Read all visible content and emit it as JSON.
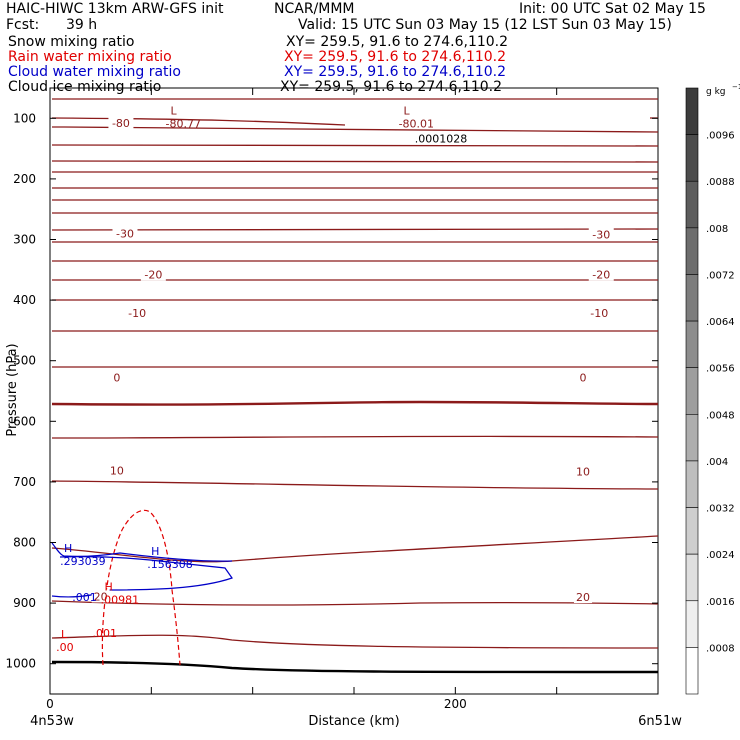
{
  "header": {
    "model": "HAIC-HIWC 13km ARW-GFS init",
    "org": "NCAR/MMM",
    "init": "Init: 00 UTC Sat 02 May 15",
    "fcst_label": "Fcst:",
    "fcst_value": "39 h",
    "valid": "Valid: 15 UTC Sun 03 May 15 (12 LST Sun 03 May 15)"
  },
  "fields": [
    {
      "name": "Snow mixing ratio",
      "xy": "XY= 259.5, 91.6 to 274.6,110.2",
      "color": "#000000"
    },
    {
      "name": "Rain water mixing ratio",
      "xy": "XY= 259.5, 91.6 to 274.6,110.2",
      "color": "#e00000"
    },
    {
      "name": "Cloud water mixing ratio",
      "xy": "XY= 259.5, 91.6 to 274.6,110.2",
      "color": "#0000c8"
    },
    {
      "name": "Cloud ice mixing ratio",
      "xy": "XY= 259.5, 91.6 to 274.6,110.2",
      "color": "#000000"
    }
  ],
  "chart_data": {
    "type": "cross-section",
    "xlabel": "Distance (km)",
    "ylabel": "Pressure (hPa)",
    "xlim": [
      0,
      300
    ],
    "ylim": [
      1050,
      50
    ],
    "x_ticks": [
      0,
      200
    ],
    "y_ticks": [
      100,
      200,
      300,
      400,
      500,
      600,
      700,
      800,
      900,
      1000
    ],
    "x_endpoint_labels": [
      "4n53w",
      "6n51w"
    ],
    "colorbar": {
      "unit": "g kg",
      "unit_exp": "−1",
      "labels": [
        ".0096",
        ".0088",
        ".008",
        ".0072",
        ".0064",
        ".0056",
        ".0048",
        ".004",
        ".0032",
        ".0024",
        ".0016",
        ".0008"
      ],
      "top_color": "#3c3c3c",
      "bottom_color": "#ffffff"
    },
    "temperature_contour_labels": [
      {
        "x": 35,
        "p": 108,
        "text": "-80"
      },
      {
        "x": 37,
        "p": 290,
        "text": "-30"
      },
      {
        "x": 272,
        "p": 292,
        "text": "-30"
      },
      {
        "x": 51,
        "p": 358,
        "text": "-20"
      },
      {
        "x": 272,
        "p": 358,
        "text": "-20"
      },
      {
        "x": 43,
        "p": 421,
        "text": "-10"
      },
      {
        "x": 271,
        "p": 421,
        "text": "-10"
      },
      {
        "x": 33,
        "p": 528,
        "text": "0"
      },
      {
        "x": 263,
        "p": 528,
        "text": "0"
      },
      {
        "x": 33,
        "p": 681,
        "text": "10"
      },
      {
        "x": 263,
        "p": 683,
        "text": "10"
      },
      {
        "x": 25,
        "p": 889,
        "text": "20"
      },
      {
        "x": 263,
        "p": 890,
        "text": "20"
      }
    ],
    "extrema": [
      {
        "symbol": "L",
        "value": "-80.77",
        "x": 57,
        "p": 107,
        "color": "#8b1a1a"
      },
      {
        "symbol": "L",
        "value": "-80.01",
        "x": 172,
        "p": 107,
        "color": "#8b1a1a"
      },
      {
        "symbol": "",
        "value": ".0001028",
        "x": 180,
        "p": 132,
        "color": "#000000"
      },
      {
        "symbol": "H",
        "value": ".293039",
        "x": 5,
        "p": 829,
        "color": "#0000c8"
      },
      {
        "symbol": "H",
        "value": ".156308",
        "x": 48,
        "p": 834,
        "color": "#0000c8"
      },
      {
        "symbol": "",
        "value": ".001",
        "x": 11,
        "p": 888,
        "color": "#0000c8"
      },
      {
        "symbol": "H",
        "value": ".00981",
        "x": 25,
        "p": 892,
        "color": "#e00000"
      },
      {
        "symbol": "",
        "value": ".001",
        "x": 21,
        "p": 948,
        "color": "#e00000"
      },
      {
        "symbol": "L",
        "value": ".00",
        "x": 3,
        "p": 971,
        "color": "#e00000"
      }
    ]
  }
}
